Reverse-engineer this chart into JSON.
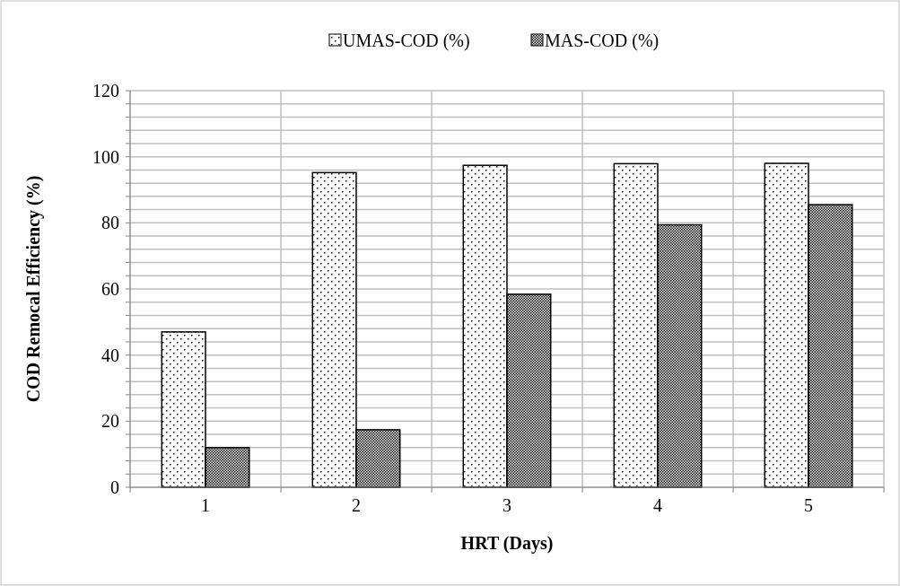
{
  "chart_data": {
    "type": "bar",
    "xlabel": "HRT (Days)",
    "ylabel": "COD Remocal Efficiency (%)",
    "categories": [
      "1",
      "2",
      "3",
      "4",
      "5"
    ],
    "series": [
      {
        "name": "UMAS-COD (%)",
        "color": "#000000",
        "values": [
          47,
          95.2,
          97.4,
          97.9,
          98
        ]
      },
      {
        "name": "MAS-COD (%)",
        "color": "#000000",
        "values": [
          12,
          17.4,
          58.4,
          79.4,
          85.5
        ]
      }
    ],
    "ylim": [
      0,
      120
    ],
    "yticks": [
      0,
      {
        "value": 4,
        "label": null
      },
      {
        "value": 8,
        "label": null
      },
      {
        "value": 12,
        "label": null
      },
      {
        "value": 16,
        "label": null
      },
      20,
      {
        "value": 24,
        "label": null
      },
      {
        "value": 28,
        "label": null
      },
      {
        "value": 32,
        "label": null
      },
      {
        "value": 36,
        "label": null
      },
      40,
      {
        "value": 44,
        "label": null
      },
      {
        "value": 48,
        "label": null
      },
      {
        "value": 52,
        "label": null
      },
      {
        "value": 56,
        "label": null
      },
      60,
      {
        "value": 64,
        "label": null
      },
      {
        "value": 68,
        "label": null
      },
      {
        "value": 72,
        "label": null
      },
      {
        "value": 76,
        "label": null
      },
      80,
      {
        "value": 84,
        "label": null
      },
      {
        "value": 88,
        "label": null
      },
      {
        "value": 92,
        "label": null
      },
      {
        "value": 96,
        "label": null
      },
      100,
      {
        "value": 104,
        "label": null
      },
      {
        "value": 108,
        "label": null
      },
      {
        "value": 112,
        "label": null
      },
      {
        "value": 116,
        "label": null
      },
      120
    ],
    "grid": true,
    "legend": "top"
  }
}
